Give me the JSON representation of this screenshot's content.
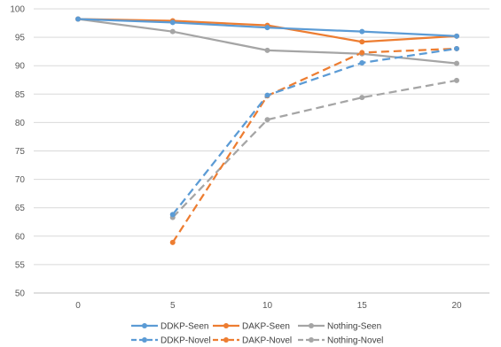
{
  "chart_data": {
    "type": "line",
    "title": "",
    "xlabel": "",
    "ylabel": "",
    "x": [
      0,
      5,
      10,
      15,
      20
    ],
    "ylim": [
      50,
      100
    ],
    "yticks": [
      50,
      55,
      60,
      65,
      70,
      75,
      80,
      85,
      90,
      95,
      100
    ],
    "grid": "horizontal",
    "legend_position": "bottom",
    "series": [
      {
        "name": "DDKP-Seen",
        "color": "#5B9BD5",
        "dash": "solid",
        "values": [
          98.2,
          97.6,
          96.7,
          96.0,
          95.2
        ]
      },
      {
        "name": "DAKP-Seen",
        "color": "#ED7D31",
        "dash": "solid",
        "values": [
          98.2,
          97.9,
          97.1,
          94.2,
          95.2
        ]
      },
      {
        "name": "Nothing-Seen",
        "color": "#A5A5A5",
        "dash": "solid",
        "values": [
          98.2,
          96.0,
          92.7,
          92.1,
          90.4
        ]
      },
      {
        "name": "DDKP-Novel",
        "color": "#5B9BD5",
        "dash": "dashed",
        "values": [
          null,
          63.8,
          84.8,
          90.5,
          93.0
        ]
      },
      {
        "name": "DAKP-Novel",
        "color": "#ED7D31",
        "dash": "dashed",
        "values": [
          null,
          58.9,
          84.7,
          92.3,
          93.0
        ]
      },
      {
        "name": "Nothing-Novel",
        "color": "#A5A5A5",
        "dash": "dashed",
        "values": [
          null,
          63.3,
          80.5,
          84.4,
          87.4
        ]
      }
    ]
  }
}
